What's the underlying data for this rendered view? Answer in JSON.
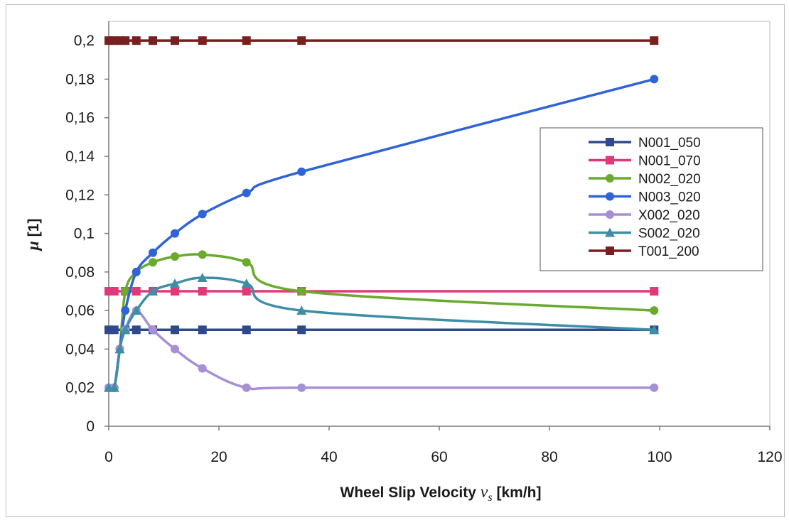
{
  "chart_data": {
    "type": "line",
    "xlabel": "Wheel Slip Velocity",
    "xlabel_symbol": "v",
    "xlabel_subscript": "s",
    "xlabel_unit": "[km/h]",
    "ylabel_symbol": "μ",
    "ylabel_unit": "[1]",
    "xlim": [
      0,
      120
    ],
    "ylim": [
      0,
      0.21
    ],
    "xticks": [
      0,
      20,
      40,
      60,
      80,
      100,
      120
    ],
    "xtick_labels": [
      "0",
      "20",
      "40",
      "60",
      "80",
      "100",
      "120"
    ],
    "yticks": [
      0,
      0.02,
      0.04,
      0.06,
      0.08,
      0.1,
      0.12,
      0.14,
      0.16,
      0.18,
      0.2
    ],
    "ytick_labels": [
      "0",
      "0,02",
      "0,04",
      "0,06",
      "0,08",
      "0,1",
      "0,12",
      "0,14",
      "0,16",
      "0,18",
      "0,2"
    ],
    "grid": false,
    "legend_position": "right",
    "series": [
      {
        "name": "N001_050",
        "color": "#2e4a8c",
        "marker": "square",
        "x": [
          0,
          1,
          3,
          5,
          8,
          12,
          17,
          25,
          35,
          99
        ],
        "y": [
          0.05,
          0.05,
          0.05,
          0.05,
          0.05,
          0.05,
          0.05,
          0.05,
          0.05,
          0.05
        ]
      },
      {
        "name": "N001_070",
        "color": "#e0397a",
        "marker": "square",
        "x": [
          0,
          1,
          3,
          5,
          8,
          12,
          17,
          25,
          35,
          99
        ],
        "y": [
          0.07,
          0.07,
          0.07,
          0.07,
          0.07,
          0.07,
          0.07,
          0.07,
          0.07,
          0.07
        ]
      },
      {
        "name": "N002_020",
        "color": "#6aaa2c",
        "marker": "circle",
        "x": [
          0,
          1,
          2,
          3,
          5,
          8,
          12,
          17,
          25,
          35,
          99
        ],
        "y": [
          0.02,
          0.02,
          0.04,
          0.07,
          0.08,
          0.085,
          0.088,
          0.089,
          0.085,
          0.07,
          0.06
        ]
      },
      {
        "name": "N003_020",
        "color": "#2f63d8",
        "marker": "circle",
        "x": [
          0,
          1,
          2,
          3,
          5,
          8,
          12,
          17,
          25,
          35,
          99
        ],
        "y": [
          0.02,
          0.02,
          0.04,
          0.06,
          0.08,
          0.09,
          0.1,
          0.11,
          0.121,
          0.132,
          0.18
        ]
      },
      {
        "name": "X002_020",
        "color": "#a78fd6",
        "marker": "circle",
        "x": [
          0,
          1,
          2,
          3,
          5,
          8,
          12,
          17,
          25,
          35,
          99
        ],
        "y": [
          0.02,
          0.02,
          0.04,
          0.05,
          0.06,
          0.05,
          0.04,
          0.03,
          0.02,
          0.02,
          0.02
        ]
      },
      {
        "name": "S002_020",
        "color": "#3f8ea6",
        "marker": "triangle",
        "x": [
          0,
          1,
          2,
          3,
          5,
          8,
          12,
          17,
          25,
          35,
          99
        ],
        "y": [
          0.02,
          0.02,
          0.04,
          0.05,
          0.06,
          0.07,
          0.074,
          0.077,
          0.074,
          0.06,
          0.05
        ]
      },
      {
        "name": "T001_200",
        "color": "#7a1f1f",
        "marker": "square",
        "x": [
          0,
          1,
          2,
          3,
          5,
          8,
          12,
          17,
          25,
          35,
          99
        ],
        "y": [
          0.2,
          0.2,
          0.2,
          0.2,
          0.2,
          0.2,
          0.2,
          0.2,
          0.2,
          0.2,
          0.2
        ]
      }
    ]
  }
}
